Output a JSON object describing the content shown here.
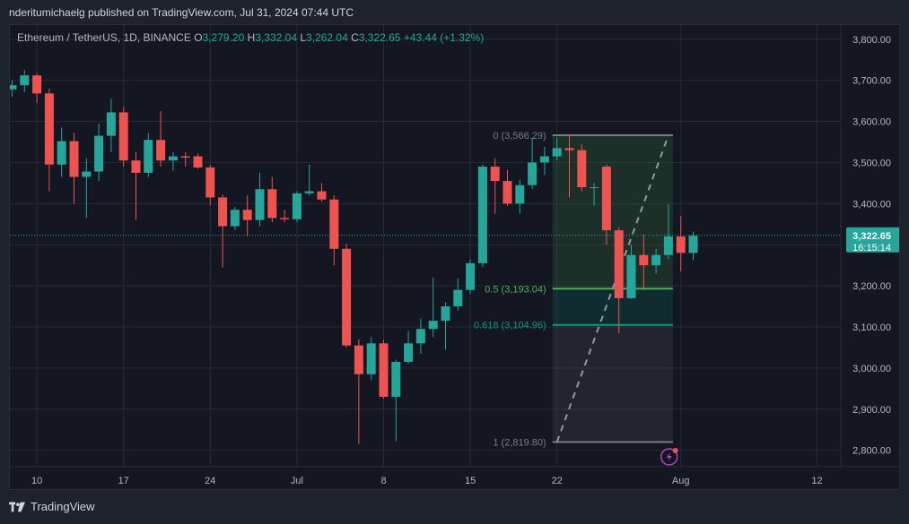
{
  "header": {
    "text": "nderitumichaelg published on TradingView.com, Jul 31, 2024 07:44 UTC"
  },
  "legend": {
    "symbol": "Ethereum / TetherUS, 1D, BINANCE",
    "o_label": "O",
    "o": "3,279.20",
    "h_label": "H",
    "h": "3,332.04",
    "l_label": "L",
    "l": "3,262.04",
    "c_label": "C",
    "c": "3,322.65",
    "change": "+43.44 (+1.32%)"
  },
  "price_tag": {
    "price": "3,322.65",
    "countdown": "16:15:14"
  },
  "footer": {
    "brand": "TradingView"
  },
  "colors": {
    "up": "#26a69a",
    "down": "#ef5350",
    "background": "#141722",
    "grid": "#262a35"
  },
  "chart_data": {
    "type": "candlestick",
    "title": "Ethereum / TetherUS, 1D, BINANCE",
    "ylim": [
      2760,
      3830
    ],
    "y_ticks": [
      2800,
      2900,
      3000,
      3100,
      3200,
      3300,
      3400,
      3500,
      3600,
      3700,
      3800
    ],
    "y_tick_labels": [
      "2,800.00",
      "2,900.00",
      "3,000.00",
      "3,100.00",
      "3,200.00",
      "3,300.00",
      "3,400.00",
      "3,500.00",
      "3,600.00",
      "3,700.00",
      "3,800.00"
    ],
    "x_tick_labels": [
      {
        "label": "10",
        "index": 2
      },
      {
        "label": "17",
        "index": 9
      },
      {
        "label": "24",
        "index": 16
      },
      {
        "label": "Jul",
        "index": 23
      },
      {
        "label": "8",
        "index": 30
      },
      {
        "label": "15",
        "index": 37
      },
      {
        "label": "22",
        "index": 44
      },
      {
        "label": "Aug",
        "index": 54
      },
      {
        "label": "12",
        "index": 65
      }
    ],
    "grid": true,
    "last_price": 3322.65,
    "candles": [
      {
        "o": 3678,
        "h": 3700,
        "l": 3660,
        "c": 3688
      },
      {
        "o": 3688,
        "h": 3725,
        "l": 3672,
        "c": 3712
      },
      {
        "o": 3712,
        "h": 3718,
        "l": 3645,
        "c": 3668
      },
      {
        "o": 3668,
        "h": 3680,
        "l": 3430,
        "c": 3495
      },
      {
        "o": 3495,
        "h": 3585,
        "l": 3465,
        "c": 3552
      },
      {
        "o": 3552,
        "h": 3572,
        "l": 3400,
        "c": 3465
      },
      {
        "o": 3465,
        "h": 3510,
        "l": 3365,
        "c": 3478
      },
      {
        "o": 3478,
        "h": 3595,
        "l": 3455,
        "c": 3565
      },
      {
        "o": 3565,
        "h": 3655,
        "l": 3525,
        "c": 3622
      },
      {
        "o": 3622,
        "h": 3635,
        "l": 3490,
        "c": 3505
      },
      {
        "o": 3505,
        "h": 3525,
        "l": 3360,
        "c": 3475
      },
      {
        "o": 3475,
        "h": 3572,
        "l": 3465,
        "c": 3555
      },
      {
        "o": 3555,
        "h": 3625,
        "l": 3490,
        "c": 3505
      },
      {
        "o": 3505,
        "h": 3525,
        "l": 3480,
        "c": 3515
      },
      {
        "o": 3515,
        "h": 3525,
        "l": 3490,
        "c": 3512
      },
      {
        "o": 3515,
        "h": 3522,
        "l": 3485,
        "c": 3488
      },
      {
        "o": 3488,
        "h": 3495,
        "l": 3395,
        "c": 3415
      },
      {
        "o": 3415,
        "h": 3422,
        "l": 3245,
        "c": 3345
      },
      {
        "o": 3345,
        "h": 3392,
        "l": 3335,
        "c": 3385
      },
      {
        "o": 3385,
        "h": 3420,
        "l": 3320,
        "c": 3360
      },
      {
        "o": 3360,
        "h": 3475,
        "l": 3345,
        "c": 3435
      },
      {
        "o": 3435,
        "h": 3465,
        "l": 3355,
        "c": 3365
      },
      {
        "o": 3365,
        "h": 3385,
        "l": 3355,
        "c": 3362
      },
      {
        "o": 3362,
        "h": 3430,
        "l": 3355,
        "c": 3425
      },
      {
        "o": 3425,
        "h": 3495,
        "l": 3420,
        "c": 3430
      },
      {
        "o": 3430,
        "h": 3450,
        "l": 3405,
        "c": 3410
      },
      {
        "o": 3410,
        "h": 3420,
        "l": 3250,
        "c": 3290
      },
      {
        "o": 3290,
        "h": 3302,
        "l": 3050,
        "c": 3055
      },
      {
        "o": 3055,
        "h": 3070,
        "l": 2815,
        "c": 2985
      },
      {
        "o": 2985,
        "h": 3075,
        "l": 2970,
        "c": 3060
      },
      {
        "o": 3060,
        "h": 3068,
        "l": 2925,
        "c": 2930
      },
      {
        "o": 2930,
        "h": 3020,
        "l": 2822,
        "c": 3015
      },
      {
        "o": 3015,
        "h": 3090,
        "l": 3010,
        "c": 3060
      },
      {
        "o": 3060,
        "h": 3120,
        "l": 3035,
        "c": 3095
      },
      {
        "o": 3095,
        "h": 3220,
        "l": 3075,
        "c": 3115
      },
      {
        "o": 3115,
        "h": 3160,
        "l": 3045,
        "c": 3150
      },
      {
        "o": 3150,
        "h": 3218,
        "l": 3140,
        "c": 3190
      },
      {
        "o": 3190,
        "h": 3265,
        "l": 3180,
        "c": 3255
      },
      {
        "o": 3255,
        "h": 3495,
        "l": 3245,
        "c": 3490
      },
      {
        "o": 3490,
        "h": 3510,
        "l": 3375,
        "c": 3455
      },
      {
        "o": 3455,
        "h": 3482,
        "l": 3395,
        "c": 3400
      },
      {
        "o": 3400,
        "h": 3458,
        "l": 3375,
        "c": 3445
      },
      {
        "o": 3445,
        "h": 3560,
        "l": 3435,
        "c": 3500
      },
      {
        "o": 3500,
        "h": 3538,
        "l": 3470,
        "c": 3515
      },
      {
        "o": 3515,
        "h": 3560,
        "l": 3505,
        "c": 3535
      },
      {
        "o": 3535,
        "h": 3565,
        "l": 3415,
        "c": 3530
      },
      {
        "o": 3530,
        "h": 3545,
        "l": 3430,
        "c": 3440
      },
      {
        "o": 3440,
        "h": 3450,
        "l": 3395,
        "c": 3440
      },
      {
        "o": 3490,
        "h": 3495,
        "l": 3300,
        "c": 3335
      },
      {
        "o": 3335,
        "h": 3342,
        "l": 3085,
        "c": 3170
      },
      {
        "o": 3170,
        "h": 3300,
        "l": 3168,
        "c": 3275
      },
      {
        "o": 3275,
        "h": 3325,
        "l": 3190,
        "c": 3250
      },
      {
        "o": 3250,
        "h": 3290,
        "l": 3230,
        "c": 3275
      },
      {
        "o": 3275,
        "h": 3398,
        "l": 3265,
        "c": 3320
      },
      {
        "o": 3320,
        "h": 3370,
        "l": 3235,
        "c": 3280
      },
      {
        "o": 3280,
        "h": 3332,
        "l": 3262,
        "c": 3322
      }
    ],
    "fib": {
      "start_index": 44,
      "end_index": 53,
      "levels": [
        {
          "ratio": "0",
          "price": 3566.29,
          "label": "0 (3,566.29)"
        },
        {
          "ratio": "0.5",
          "price": 3193.04,
          "label": "0.5 (3,193.04)"
        },
        {
          "ratio": "0.618",
          "price": 3104.96,
          "label": "0.618 (3,104.96)"
        },
        {
          "ratio": "1",
          "price": 2819.8,
          "label": "1 (2,819.80)"
        }
      ]
    }
  }
}
